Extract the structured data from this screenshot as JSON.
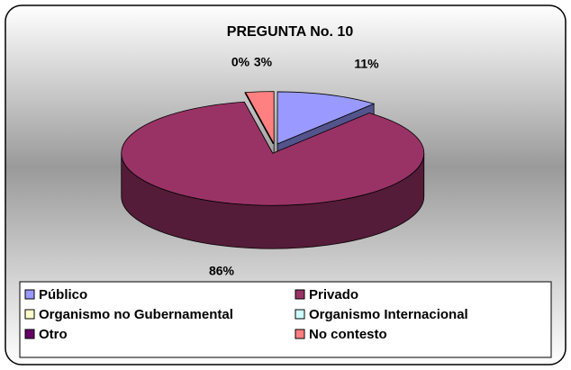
{
  "chart_data": {
    "type": "pie",
    "title": "PREGUNTA No. 10",
    "categories": [
      "Público",
      "Privado",
      "Organismo no Gubernamental",
      "Organismo Internacional",
      "Otro",
      "No contesto"
    ],
    "values": [
      11,
      86,
      0,
      0,
      0,
      3
    ],
    "value_labels": [
      "11%",
      "86%",
      "0%",
      null,
      null,
      "3%"
    ],
    "colors": [
      "#9999ff",
      "#993366",
      "#ffffcc",
      "#ccffff",
      "#660066",
      "#ff8080"
    ],
    "legend": "bottom"
  }
}
